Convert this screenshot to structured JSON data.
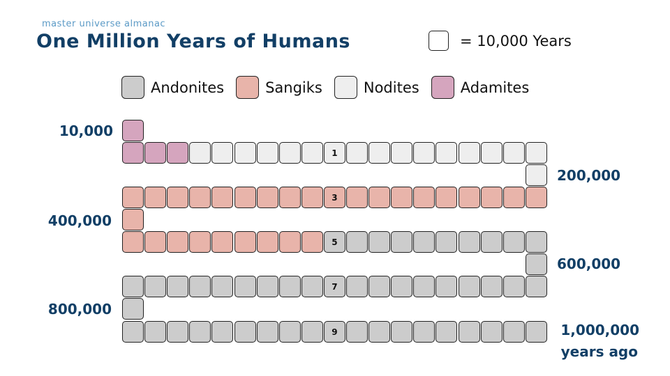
{
  "header": {
    "brand": "master universe almanac",
    "title": "One Million Years of Humans"
  },
  "unit_key": {
    "label": "= 10,000 Years"
  },
  "legend": [
    {
      "name": "Andonites",
      "color": "#cccccc"
    },
    {
      "name": "Sangiks",
      "color": "#e8b4aa"
    },
    {
      "name": "Nodites",
      "color": "#eeeeee"
    },
    {
      "name": "Adamites",
      "color": "#d5a5be"
    }
  ],
  "year_labels": {
    "y10k": "10,000",
    "y200k": "200,000",
    "y400k": "400,000",
    "y600k": "600,000",
    "y800k": "800,000",
    "y1m": "1,000,000",
    "y1m_sub": "years ago"
  },
  "chart_data": {
    "type": "table",
    "unit_years": 10000,
    "rows": [
      {
        "row_label": "1",
        "cells": [
          "Adamites",
          "Adamites",
          "Adamites",
          "Nodites",
          "Nodites",
          "Nodites",
          "Nodites",
          "Nodites",
          "Nodites",
          "Nodites",
          "Nodites",
          "Nodites",
          "Nodites",
          "Nodites",
          "Nodites",
          "Nodites",
          "Nodites",
          "Nodites",
          "Nodites"
        ]
      },
      {
        "row_label": "3",
        "cells": [
          "Sangiks",
          "Sangiks",
          "Sangiks",
          "Sangiks",
          "Sangiks",
          "Sangiks",
          "Sangiks",
          "Sangiks",
          "Sangiks",
          "Sangiks",
          "Sangiks",
          "Sangiks",
          "Sangiks",
          "Sangiks",
          "Sangiks",
          "Sangiks",
          "Sangiks",
          "Sangiks",
          "Sangiks"
        ]
      },
      {
        "row_label": "5",
        "cells": [
          "Sangiks",
          "Sangiks",
          "Sangiks",
          "Sangiks",
          "Sangiks",
          "Sangiks",
          "Sangiks",
          "Sangiks",
          "Sangiks",
          "Andonites",
          "Andonites",
          "Andonites",
          "Andonites",
          "Andonites",
          "Andonites",
          "Andonites",
          "Andonites",
          "Andonites",
          "Andonites"
        ]
      },
      {
        "row_label": "7",
        "cells": [
          "Andonites",
          "Andonites",
          "Andonites",
          "Andonites",
          "Andonites",
          "Andonites",
          "Andonites",
          "Andonites",
          "Andonites",
          "Andonites",
          "Andonites",
          "Andonites",
          "Andonites",
          "Andonites",
          "Andonites",
          "Andonites",
          "Andonites",
          "Andonites",
          "Andonites"
        ]
      },
      {
        "row_label": "9",
        "cells": [
          "Andonites",
          "Andonites",
          "Andonites",
          "Andonites",
          "Andonites",
          "Andonites",
          "Andonites",
          "Andonites",
          "Andonites",
          "Andonites",
          "Andonites",
          "Andonites",
          "Andonites",
          "Andonites",
          "Andonites",
          "Andonites",
          "Andonites",
          "Andonites",
          "Andonites"
        ]
      }
    ],
    "connectors": [
      {
        "after_row": -1,
        "side": "left",
        "group": "Adamites"
      },
      {
        "after_row": 0,
        "side": "right",
        "group": "Nodites"
      },
      {
        "after_row": 1,
        "side": "left",
        "group": "Sangiks"
      },
      {
        "after_row": 2,
        "side": "right",
        "group": "Andonites"
      },
      {
        "after_row": 3,
        "side": "left",
        "group": "Andonites"
      }
    ]
  }
}
